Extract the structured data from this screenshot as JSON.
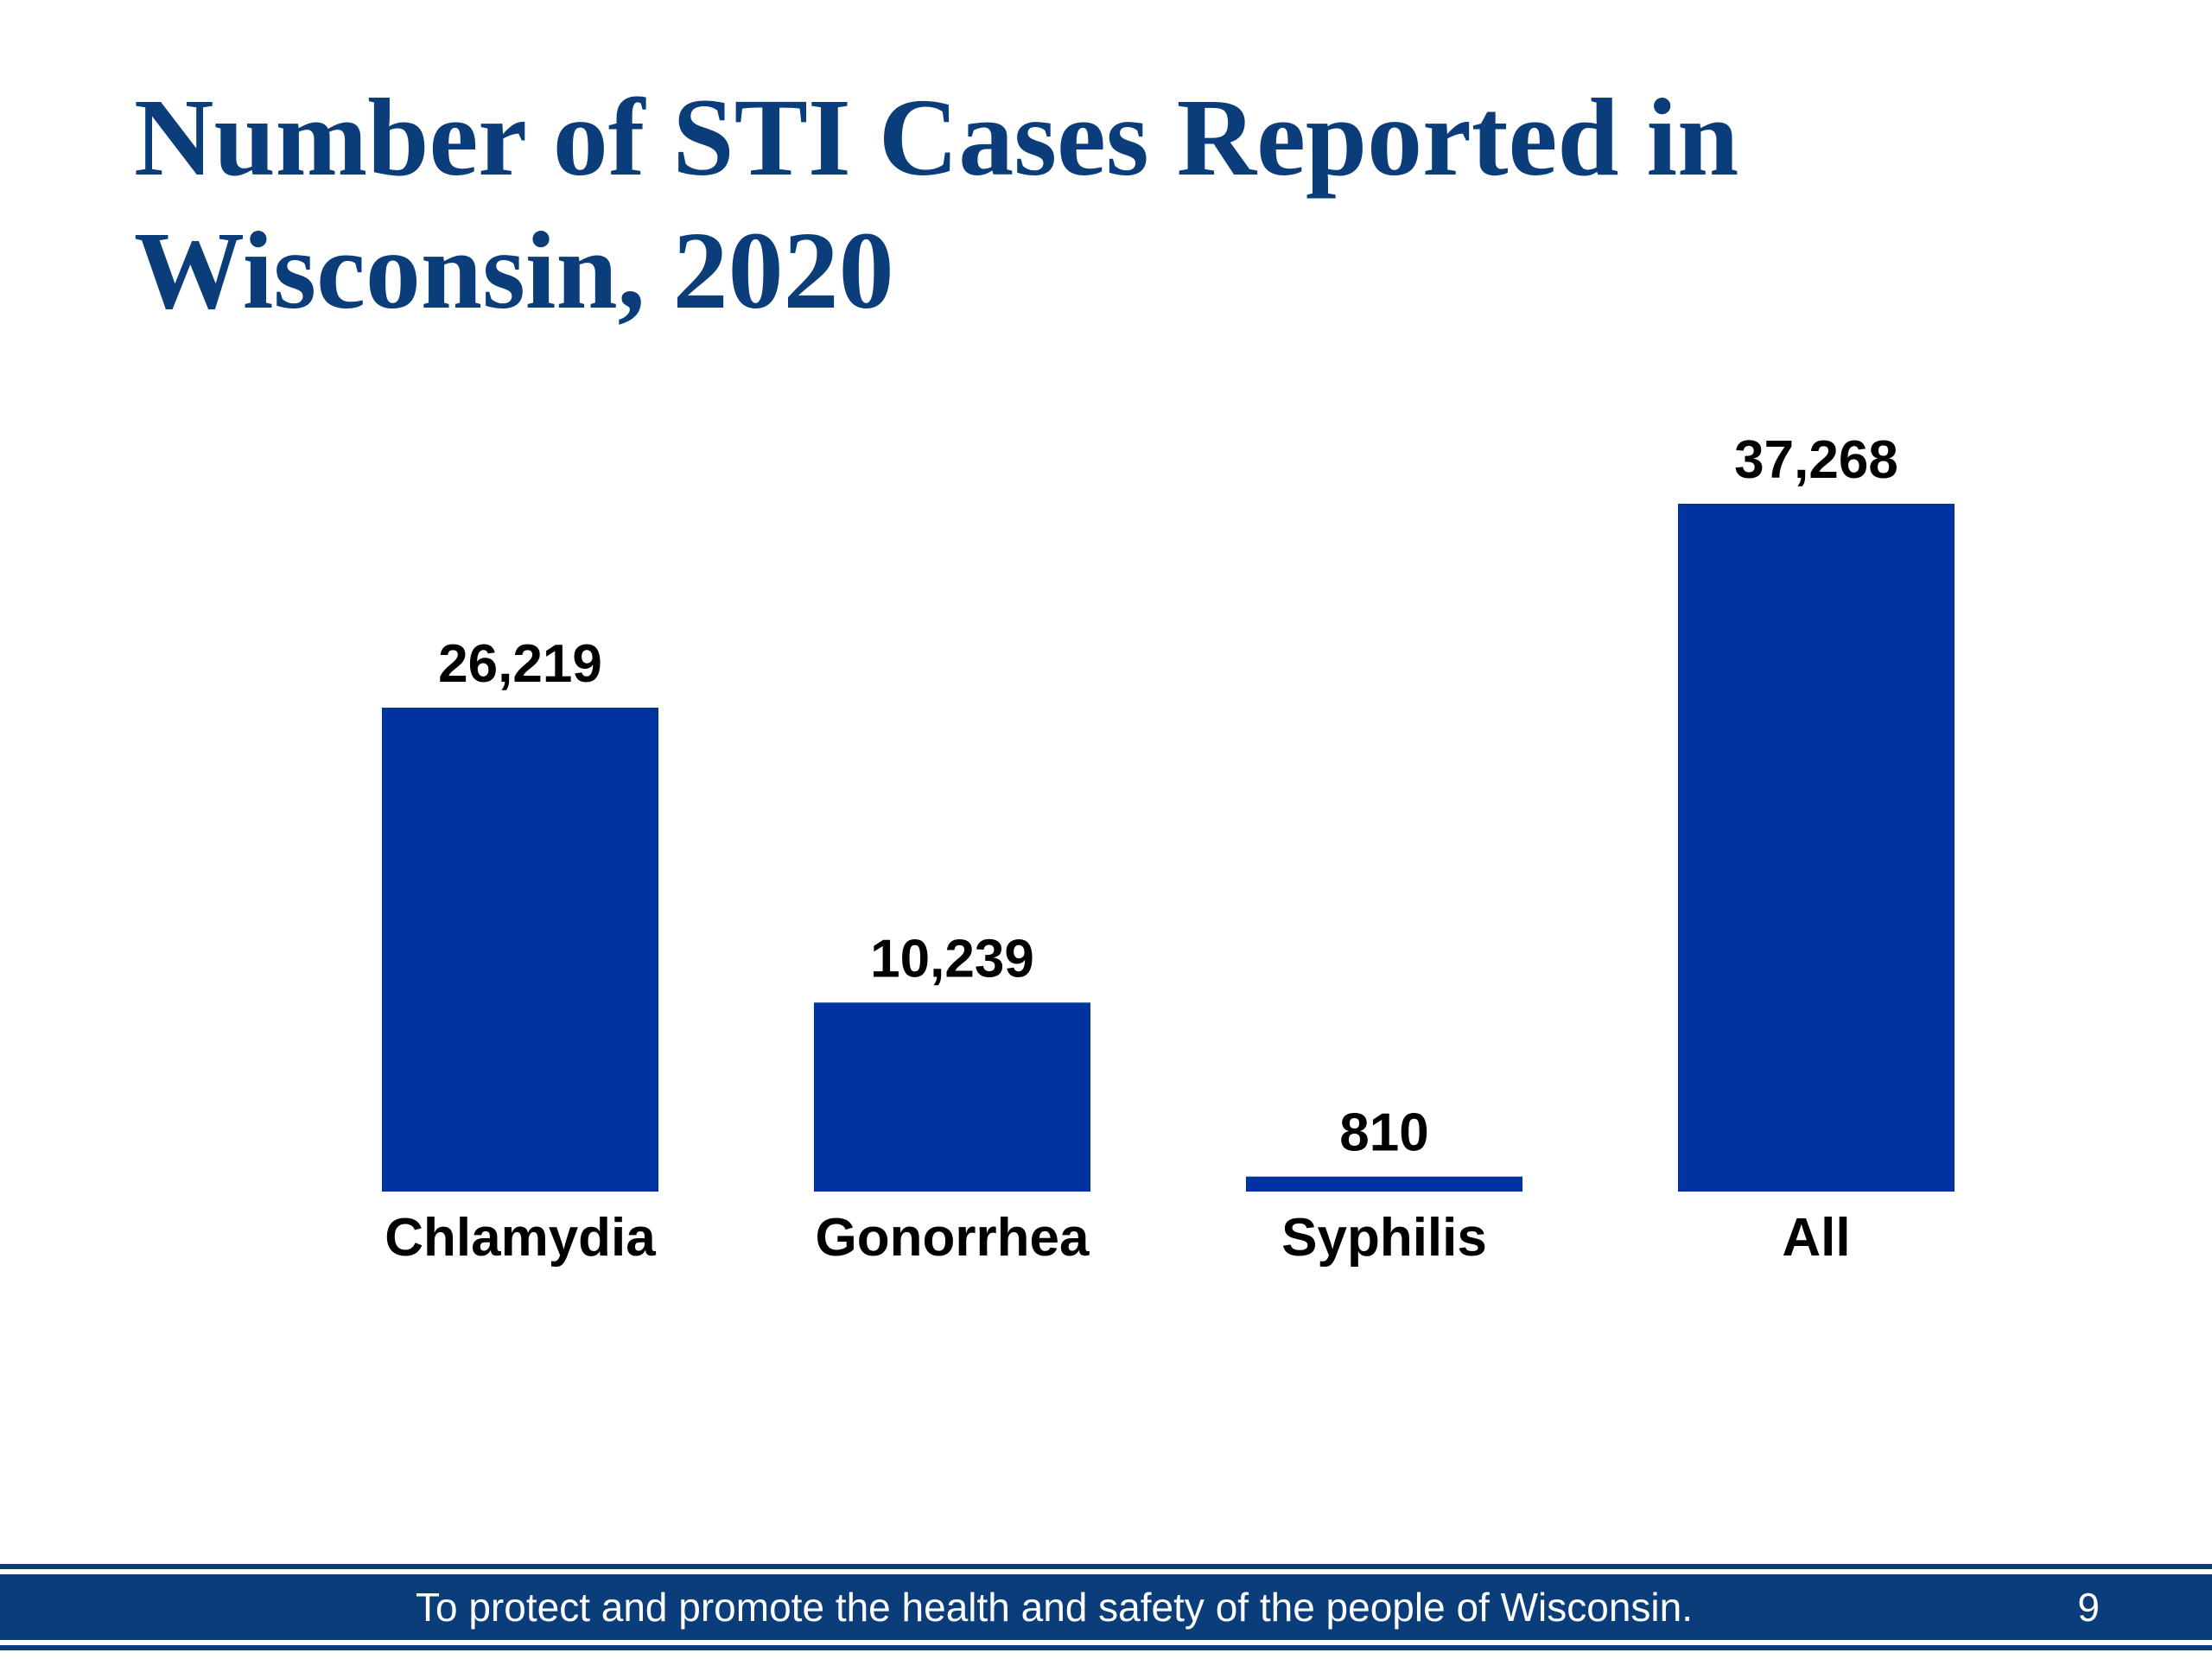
{
  "slide": {
    "title": "Number of STI Cases Reported in Wisconsin, 2020",
    "footer_text": "To protect and promote the health and safety of the people of Wisconsin.",
    "page_number": "9"
  },
  "colors": {
    "title": "#0b3d7a",
    "bar": "#0033a0",
    "footer": "#0b3d7a"
  },
  "chart_data": {
    "type": "bar",
    "title": "Number of STI Cases Reported in Wisconsin, 2020",
    "xlabel": "",
    "ylabel": "",
    "categories": [
      "Chlamydia",
      "Gonorrhea",
      "Syphilis",
      "All"
    ],
    "values": [
      26219,
      10239,
      810,
      37268
    ],
    "value_labels": [
      "26,219",
      "10,239",
      "810",
      "37,268"
    ],
    "ylim": [
      0,
      37268
    ],
    "grid": false,
    "legend": "none",
    "axes_visible": false
  }
}
